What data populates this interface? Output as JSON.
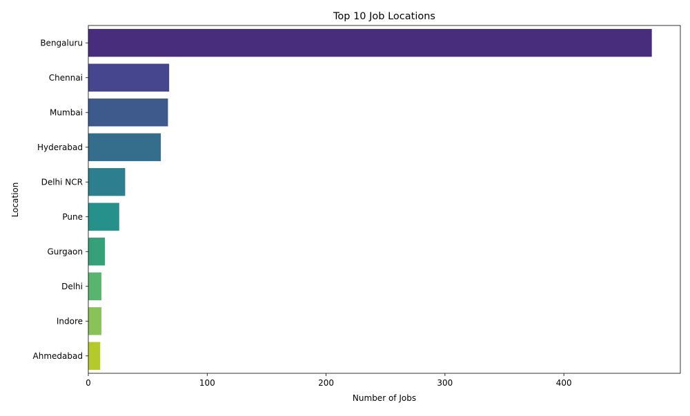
{
  "chart_data": {
    "type": "bar",
    "orientation": "horizontal",
    "title": "Top 10 Job Locations",
    "xlabel": "Number of Jobs",
    "ylabel": "Location",
    "categories": [
      "Bengaluru",
      "Chennai",
      "Mumbai",
      "Hyderabad",
      "Delhi NCR",
      "Pune",
      "Gurgaon",
      "Delhi",
      "Indore",
      "Ahmedabad"
    ],
    "values": [
      474,
      68,
      67,
      61,
      31,
      26,
      14,
      11,
      11,
      10
    ],
    "xlim": [
      0,
      498
    ],
    "xticks": [
      0,
      100,
      200,
      300,
      400
    ],
    "grid": false,
    "legend": "none",
    "colors": [
      "#472d7b",
      "#46468f",
      "#3e5a8c",
      "#356e8c",
      "#2d7e8e",
      "#26918b",
      "#35a079",
      "#58b56f",
      "#89c357",
      "#b4ca2a"
    ]
  }
}
